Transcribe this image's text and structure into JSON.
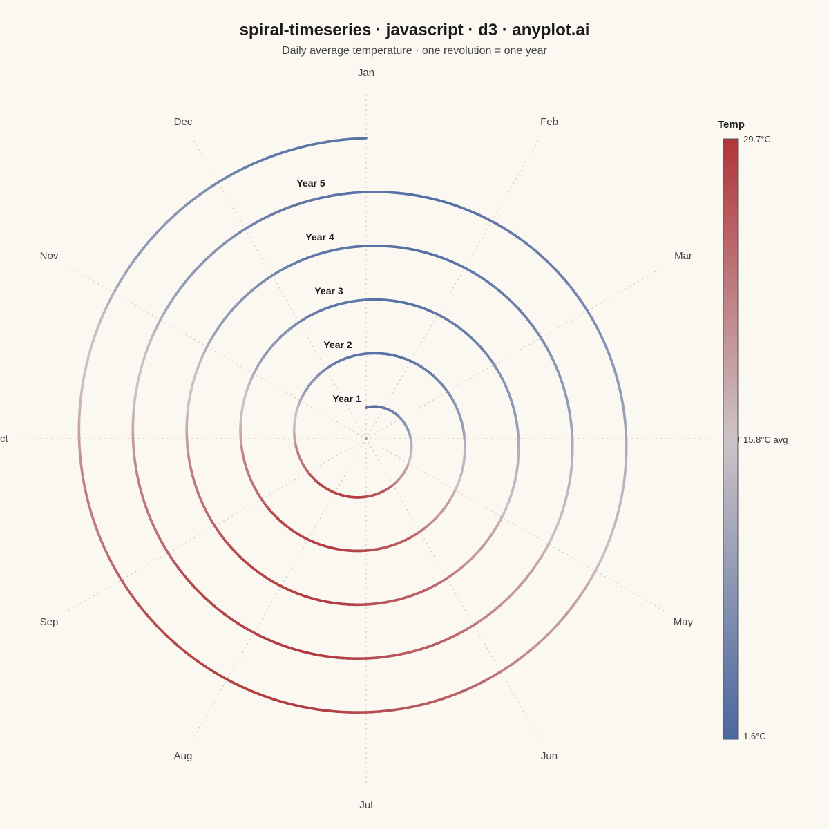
{
  "title": "spiral-timeseries · javascript · d3 · anyplot.ai",
  "subtitle": "Daily average temperature · one revolution = one year",
  "chart_data": {
    "type": "spiral",
    "months": [
      "Jan",
      "Feb",
      "Mar",
      "Apr",
      "May",
      "Jun",
      "Jul",
      "Aug",
      "Sep",
      "Oct",
      "Nov",
      "Dec"
    ],
    "years": [
      "Year 1",
      "Year 2",
      "Year 3",
      "Year 4",
      "Year 5"
    ],
    "series": [
      {
        "monthly_mean_temp_c": [
          3,
          5,
          9,
          14,
          20,
          26,
          29,
          28,
          23,
          16,
          9,
          4
        ]
      }
    ],
    "colorbar": {
      "title": "Temp",
      "min": 1.6,
      "max": 29.7,
      "mid": 15.8,
      "min_label": "1.6°C",
      "max_label": "29.7°C",
      "mid_label": "15.8°C avg",
      "low_color": "#4A67A0",
      "mid_color": "#CCC3C6",
      "high_color": "#B1353A"
    },
    "grid": true
  }
}
